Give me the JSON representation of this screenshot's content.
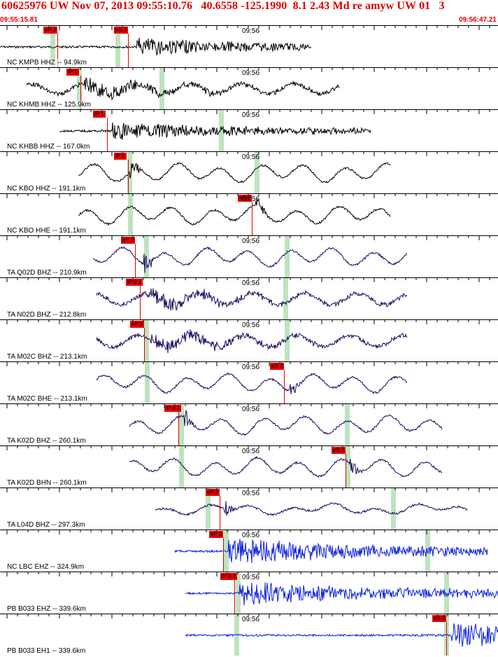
{
  "header": {
    "title": "60625976 UW Nov 07, 2013 09:55:10.76   40.6558 -125.1990  8.1 2.43 Md re amyw UW 01   3",
    "time_start": "09:55:15.81",
    "time_end": "09:56:47.21",
    "accent_color": "#e00000"
  },
  "time_tick_label": "09:56",
  "traces": [
    {
      "label": "NC KMPB HHZ -- 94.9km",
      "color": "#000000",
      "picks": [
        {
          "text": "eP 2",
          "x": 62
        },
        {
          "text": "eS 2",
          "x": 163
        }
      ],
      "green": [
        75,
        168
      ],
      "start": 0,
      "end": 445,
      "burst": 195,
      "amp": 0.5,
      "kind": "hf"
    },
    {
      "label": "NC KHMB HHZ -- 125.9km",
      "color": "#000000",
      "picks": [
        {
          "text": "iP 1",
          "x": 95
        }
      ],
      "green": [
        113,
        231
      ],
      "start": 38,
      "end": 485,
      "burst": 118,
      "amp": 0.7,
      "kind": "mix"
    },
    {
      "label": "NC KHBB HHZ -- 167.0km",
      "color": "#000000",
      "picks": [
        {
          "text": "iP 1",
          "x": 133
        }
      ],
      "green": [
        316
      ],
      "start": 85,
      "end": 530,
      "burst": 160,
      "amp": 0.5,
      "kind": "hf"
    },
    {
      "label": "NC KBO HHZ -- 191.1km",
      "color": "#000000",
      "picks": [
        {
          "text": "iP 1",
          "x": 163
        }
      ],
      "green": [
        185,
        367
      ],
      "start": 112,
      "end": 558,
      "burst": 185,
      "amp": 0.8,
      "kind": "lf"
    },
    {
      "label": "NC KBO HHE -- 191.1km",
      "color": "#000000",
      "picks": [
        {
          "text": "eS 2",
          "x": 340
        }
      ],
      "green": [
        186
      ],
      "start": 112,
      "end": 558,
      "burst": 365,
      "amp": 0.8,
      "kind": "lf"
    },
    {
      "label": "TA Q02D BHZ -- 210.9km",
      "color": "#1a0a5e",
      "picks": [
        {
          "text": "eP 2",
          "x": 173
        }
      ],
      "green": [
        209,
        410
      ],
      "start": 133,
      "end": 582,
      "burst": 205,
      "amp": 0.8,
      "kind": "lf"
    },
    {
      "label": "TA N02D BHZ -- 212.8km",
      "color": "#1a0a5e",
      "picks": [
        {
          "text": "iP 0 1",
          "x": 180
        }
      ],
      "green": [
        408
      ],
      "start": 138,
      "end": 582,
      "burst": 210,
      "amp": 0.8,
      "kind": "mix"
    },
    {
      "label": "TA M02C BHZ -- 213.1km",
      "color": "#1a0a5e",
      "picks": [
        {
          "text": "eP 2",
          "x": 186
        }
      ],
      "green": [
        209,
        410
      ],
      "start": 138,
      "end": 582,
      "burst": 215,
      "amp": 0.8,
      "kind": "mix"
    },
    {
      "label": "TA M02C BHE -- 213.1km",
      "color": "#1a0a5e",
      "picks": [
        {
          "text": "eS 2",
          "x": 386
        }
      ],
      "green": [
        210
      ],
      "start": 138,
      "end": 582,
      "burst": 413,
      "amp": 0.8,
      "kind": "lf"
    },
    {
      "label": "TA K02D BHZ -- 260.1km",
      "color": "#1a0a5e",
      "picks": [
        {
          "text": "iP 0 1",
          "x": 235
        }
      ],
      "green": [
        259,
        496
      ],
      "start": 185,
      "end": 632,
      "burst": 262,
      "amp": 0.8,
      "kind": "lf"
    },
    {
      "label": "TA K02D BHN -- 260.1km",
      "color": "#1a0a5e",
      "picks": [
        {
          "text": "eS 2",
          "x": 474
        }
      ],
      "green": [
        259,
        497
      ],
      "start": 185,
      "end": 632,
      "burst": 500,
      "amp": 0.8,
      "kind": "lf"
    },
    {
      "label": "TA L04D BHZ -- 297.3km",
      "color": "#1a0a5e",
      "picks": [
        {
          "text": "eP 2",
          "x": 294
        }
      ],
      "green": [
        297,
        562
      ],
      "start": 222,
      "end": 668,
      "burst": 320,
      "amp": 0.35,
      "kind": "lf"
    },
    {
      "label": "NC LBC EHZ -- 324.9km",
      "color": "#0a1ee0",
      "picks": [
        {
          "text": "eP 2",
          "x": 299
        }
      ],
      "green": [
        323,
        611
      ],
      "start": 250,
      "end": 697,
      "burst": 326,
      "amp": 0.8,
      "kind": "hf"
    },
    {
      "label": "PB B033 EHZ -- 339.6km",
      "color": "#0a1ee0",
      "picks": [
        {
          "text": "iP 0 1",
          "x": 315
        }
      ],
      "green": [
        340,
        638
      ],
      "start": 265,
      "end": 712,
      "burst": 342,
      "amp": 0.7,
      "kind": "hf"
    },
    {
      "label": "PB B033 EH1 -- 339.6km",
      "color": "#0a1ee0",
      "picks": [
        {
          "text": "eS 2",
          "x": 618
        }
      ],
      "green": [
        338,
        638
      ],
      "start": 265,
      "end": 712,
      "burst": 645,
      "amp": 0.7,
      "kind": "hf"
    }
  ]
}
